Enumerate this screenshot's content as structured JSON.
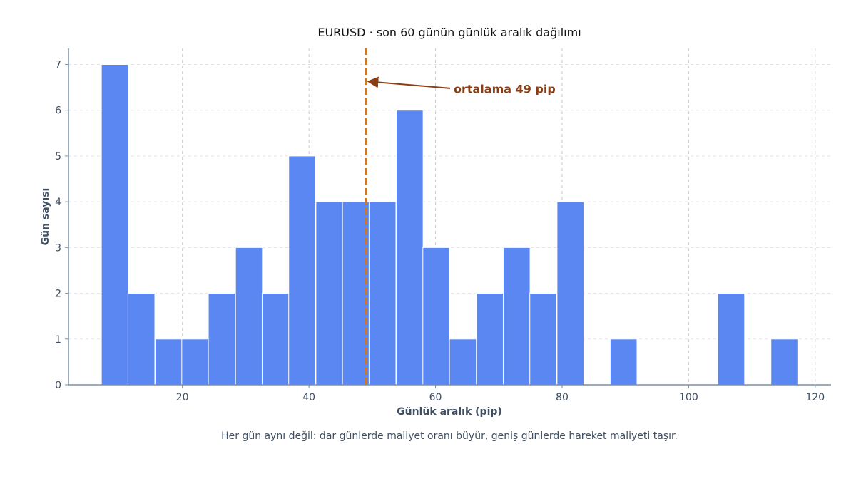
{
  "chart_data": {
    "type": "bar",
    "title": "EURUSD · son 60 günün günlük aralık dağılımı",
    "xlabel": "Günlük aralık (pip)",
    "ylabel": "Gün sayısı",
    "caption": "Her gün aynı değil: dar günlerde maliyet oranı büyür, geniş günlerde hareket maliyeti taşır.",
    "xlim": [
      2,
      122.5
    ],
    "ylim": [
      0,
      7.35
    ],
    "x_ticks": [
      "20",
      "40",
      "60",
      "80",
      "100",
      "120"
    ],
    "x_tick_values": [
      20,
      40,
      60,
      80,
      100,
      120
    ],
    "y_ticks": [
      "0",
      "1",
      "2",
      "3",
      "4",
      "5",
      "6",
      "7"
    ],
    "y_tick_values": [
      0,
      1,
      2,
      3,
      4,
      5,
      6,
      7
    ],
    "grid": true,
    "bin_width": 4.24,
    "bins_start": [
      7.2,
      11.4,
      15.7,
      19.9,
      24.1,
      28.4,
      32.6,
      36.8,
      41.1,
      45.3,
      49.5,
      53.8,
      58.0,
      62.2,
      66.5,
      70.7,
      74.9,
      79.2,
      83.4,
      87.6,
      91.9,
      96.1,
      100.3,
      104.6,
      108.8,
      113.0
    ],
    "values": [
      7,
      2,
      1,
      1,
      2,
      3,
      2,
      5,
      4,
      4,
      4,
      6,
      3,
      1,
      2,
      3,
      2,
      4,
      0,
      1,
      0,
      0,
      0,
      2,
      0,
      1
    ],
    "mean_line": {
      "value": 49,
      "label": "ortalama 49 pip"
    },
    "colors": {
      "bar": "#5b87f2",
      "bar_edge": "#ffffff",
      "mean_line": "#d4761b",
      "annotation": "#8b3e12",
      "axis": "#7a8fa6",
      "grid": "#d9d9d9",
      "text": "#3f4f63",
      "title": "#111111"
    }
  }
}
